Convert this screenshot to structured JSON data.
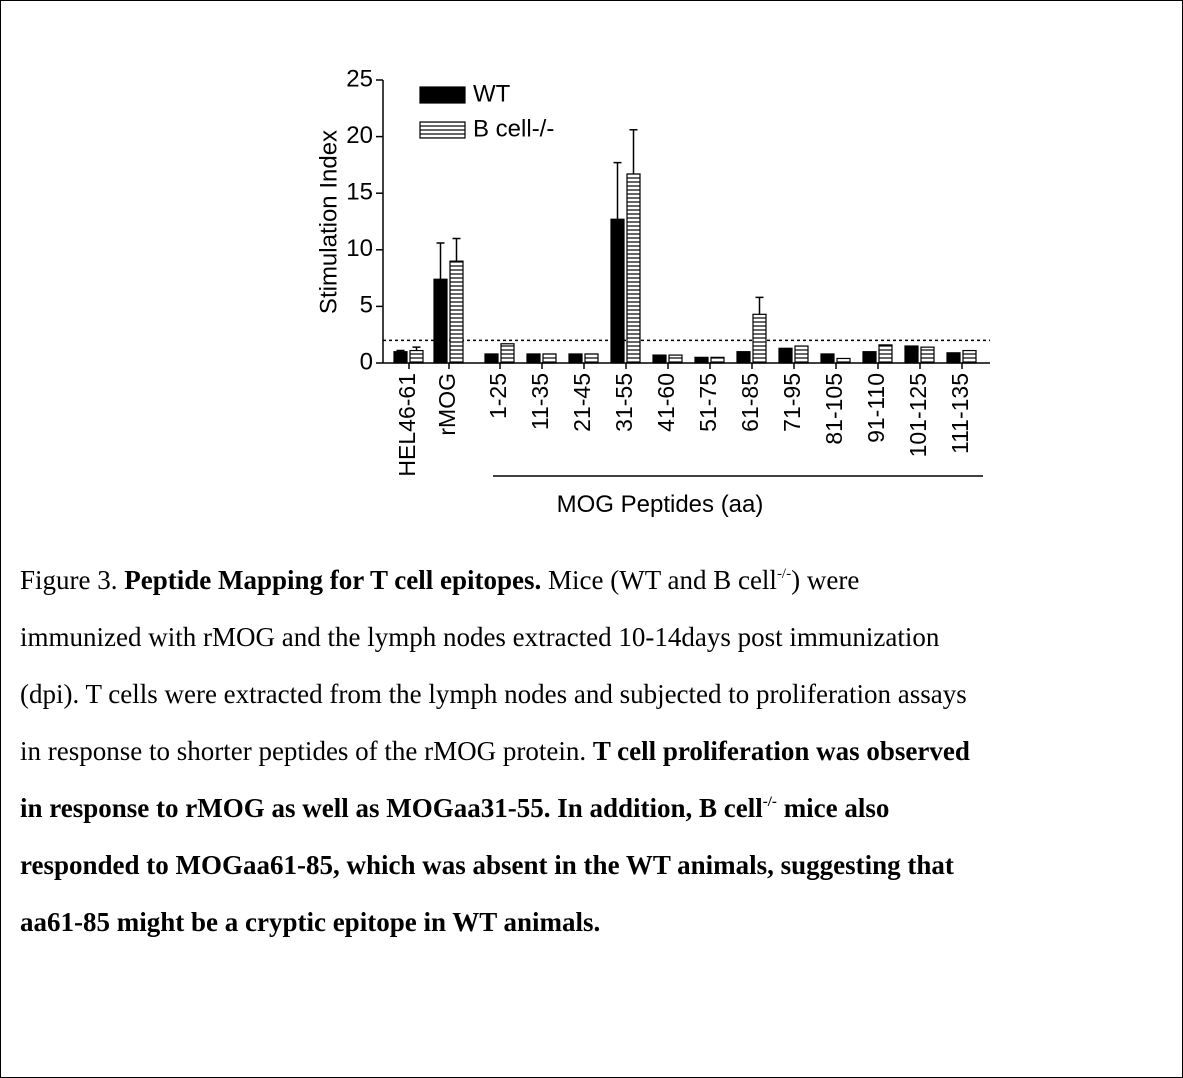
{
  "chart_data": {
    "type": "bar",
    "categories": [
      "HEL46-61",
      "rMOG",
      "1-25",
      "11-35",
      "21-45",
      "31-55",
      "41-60",
      "51-75",
      "61-85",
      "71-95",
      "81-105",
      "91-110",
      "101-125",
      "111-135"
    ],
    "series": [
      {
        "name": "WT",
        "color": "#000000",
        "fill": "solid",
        "values": [
          1.0,
          7.4,
          0.8,
          0.8,
          0.8,
          12.7,
          0.7,
          0.5,
          1.0,
          1.3,
          0.8,
          1.0,
          1.5,
          0.9
        ],
        "errors": [
          0.1,
          3.2,
          null,
          null,
          null,
          5.0,
          null,
          null,
          null,
          null,
          null,
          null,
          null,
          null
        ]
      },
      {
        "name": "B cell-/-",
        "color": "#000000",
        "fill": "hatch",
        "values": [
          1.1,
          9.0,
          1.7,
          0.8,
          0.8,
          16.7,
          0.7,
          0.5,
          4.3,
          1.5,
          0.4,
          1.6,
          1.4,
          1.1
        ],
        "errors": [
          0.3,
          2.0,
          null,
          null,
          null,
          3.9,
          null,
          null,
          1.5,
          null,
          null,
          null,
          null,
          null
        ]
      }
    ],
    "y_label": "Stimulation Index",
    "x_label": "MOG  Peptides (aa)",
    "ylim": [
      0,
      25
    ],
    "yticks": [
      0,
      5,
      10,
      15,
      20,
      25
    ],
    "threshold": 2,
    "legend": "top-left",
    "grid": false
  },
  "caption": {
    "lines": [
      [
        {
          "text": "Figure 3. "
        },
        {
          "text": "Peptide Mapping for T cell epitopes.",
          "style": "bold"
        },
        {
          "text": " Mice (WT and B cell"
        },
        {
          "text": "-/-",
          "style": "sup"
        },
        {
          "text": ") were"
        }
      ],
      [
        {
          "text": "immunized with rMOG and the lymph nodes extracted 10-14days post immunization"
        }
      ],
      [
        {
          "text": "(dpi). T cells were extracted from the lymph nodes and subjected to proliferation assays"
        }
      ],
      [
        {
          "text": "in response to shorter peptides of the rMOG protein. "
        },
        {
          "text": "T cell proliferation was observed",
          "style": "bold"
        }
      ],
      [
        {
          "text": "in response to rMOG as well as MOGaa31-55. In addition, B cell",
          "style": "bold"
        },
        {
          "text": "-/-",
          "style": "bold-sup"
        },
        {
          "text": " mice also",
          "style": "bold"
        }
      ],
      [
        {
          "text": "responded to MOGaa61-85, which was absent in the WT animals, suggesting that",
          "style": "bold"
        }
      ],
      [
        {
          "text": "aa61-85 might be a cryptic epitope in WT animals.",
          "style": "bold"
        }
      ]
    ]
  }
}
